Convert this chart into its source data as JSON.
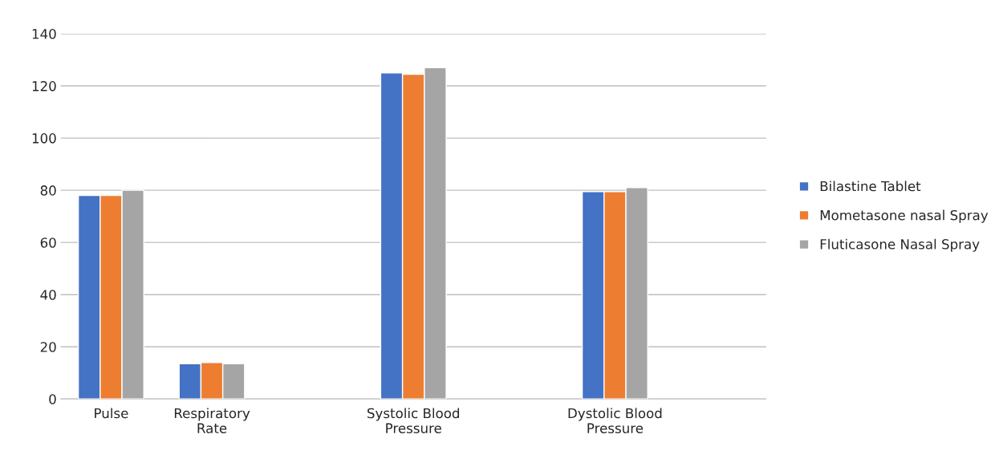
{
  "chart_data": {
    "type": "bar",
    "categories": [
      "Pulse",
      "Respiratory\nRate",
      null,
      "Systolic Blood\nPressure",
      null,
      "Dystolic Blood\nPressure",
      null
    ],
    "series": [
      {
        "name": "Bilastine Tablet",
        "color": "#4472c4",
        "values": [
          78,
          13.5,
          null,
          125,
          null,
          79.5,
          null
        ]
      },
      {
        "name": "Mometasone nasal Spray",
        "color": "#ed7d31",
        "values": [
          78,
          14,
          null,
          124.5,
          null,
          79.5,
          null
        ]
      },
      {
        "name": "Fluticasone Nasal Spray",
        "color": "#a5a5a5",
        "values": [
          80,
          13.5,
          null,
          127,
          null,
          81,
          null
        ]
      }
    ],
    "ylim": [
      0,
      140
    ],
    "yticks": [
      0,
      20,
      40,
      60,
      80,
      100,
      120,
      140
    ],
    "grid": "y",
    "legend": "right"
  }
}
